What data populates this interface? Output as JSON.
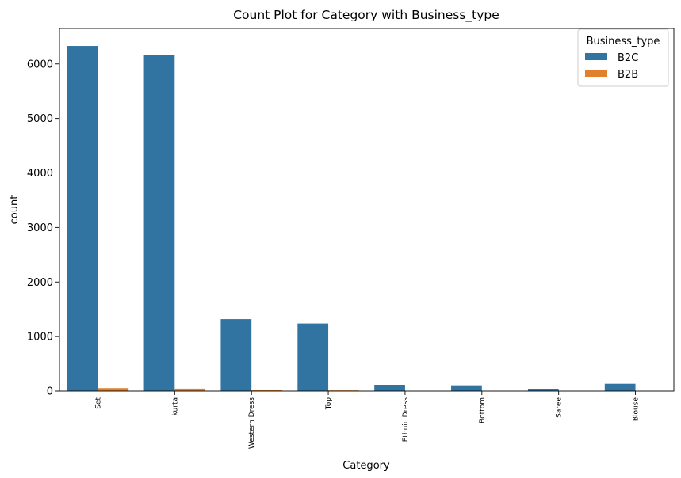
{
  "chart_data": {
    "type": "bar",
    "title": "Count Plot for Category with Business_type",
    "xlabel": "Category",
    "ylabel": "count",
    "categories": [
      "Set",
      "kurta",
      "Western Dress",
      "Top",
      "Ethnic Dress",
      "Bottom",
      "Saree",
      "Blouse"
    ],
    "series": [
      {
        "name": "B2C",
        "color": "#3274a1",
        "values": [
          6330,
          6160,
          1320,
          1240,
          105,
          92,
          32,
          135
        ]
      },
      {
        "name": "B2B",
        "color": "#e1812c",
        "values": [
          55,
          45,
          15,
          12,
          0,
          0,
          0,
          0
        ]
      }
    ],
    "ylim": [
      0,
      6650
    ],
    "yticks": [
      0,
      1000,
      2000,
      3000,
      4000,
      5000,
      6000
    ],
    "ytick_labels": [
      "0",
      "1000",
      "2000",
      "3000",
      "4000",
      "5000",
      "6000"
    ],
    "grid": false,
    "legend": {
      "title": "Business_type",
      "placement": "top-right"
    }
  }
}
